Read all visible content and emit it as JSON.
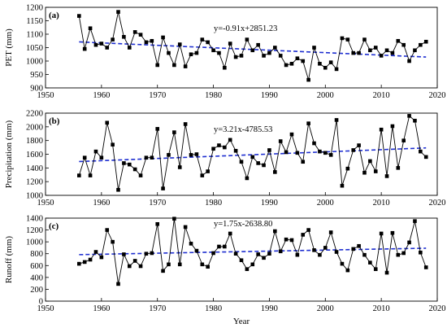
{
  "chart_data": [
    {
      "type": "line",
      "panel_label": "(a)",
      "ylabel": "PET (mm)",
      "xlabel": "",
      "equation": "y=-0.91x+2851.23",
      "trend": {
        "slope": -0.91,
        "intercept": 2851.23
      },
      "xlim": [
        1950,
        2020
      ],
      "ylim": [
        900,
        1200
      ],
      "xticks": [
        1950,
        1960,
        1970,
        1980,
        1990,
        2000,
        2010,
        2020
      ],
      "yticks": [
        900,
        950,
        1000,
        1050,
        1100,
        1150,
        1200
      ],
      "colors": {
        "series": "#000000",
        "trend": "#1f2fd0"
      },
      "x": [
        1956,
        1957,
        1958,
        1959,
        1960,
        1961,
        1962,
        1963,
        1964,
        1965,
        1966,
        1967,
        1968,
        1969,
        1970,
        1971,
        1972,
        1973,
        1974,
        1975,
        1976,
        1977,
        1978,
        1979,
        1980,
        1981,
        1982,
        1983,
        1984,
        1985,
        1986,
        1987,
        1988,
        1989,
        1990,
        1991,
        1992,
        1993,
        1994,
        1995,
        1996,
        1997,
        1998,
        1999,
        2000,
        2001,
        2002,
        2003,
        2004,
        2005,
        2006,
        2007,
        2008,
        2009,
        2010,
        2011,
        2012,
        2013,
        2014,
        2015,
        2016,
        2017,
        2018
      ],
      "values": [
        1168,
        1045,
        1122,
        1060,
        1065,
        1050,
        1080,
        1183,
        1090,
        1050,
        1108,
        1098,
        1070,
        1075,
        985,
        1088,
        1030,
        985,
        1062,
        980,
        1025,
        1030,
        1080,
        1070,
        1040,
        1030,
        975,
        1065,
        1015,
        1020,
        1080,
        1040,
        1060,
        1020,
        1030,
        1050,
        1020,
        985,
        990,
        1010,
        1000,
        930,
        1050,
        990,
        975,
        995,
        970,
        1085,
        1080,
        1030,
        1030,
        1080,
        1040,
        1050,
        1020,
        1040,
        1030,
        1075,
        1060,
        1000,
        1040,
        1060,
        1072
      ]
    },
    {
      "type": "line",
      "panel_label": "(b)",
      "ylabel": "Precipitation (mm)",
      "xlabel": "",
      "equation": "y=3.21x-4785.53",
      "trend": {
        "slope": 3.21,
        "intercept": -4785.53
      },
      "xlim": [
        1950,
        2020
      ],
      "ylim": [
        1000,
        2200
      ],
      "xticks": [
        1950,
        1960,
        1970,
        1980,
        1990,
        2000,
        2010,
        2020
      ],
      "yticks": [
        1000,
        1200,
        1400,
        1600,
        1800,
        2000,
        2200
      ],
      "colors": {
        "series": "#000000",
        "trend": "#1f2fd0"
      },
      "x": [
        1956,
        1957,
        1958,
        1959,
        1960,
        1961,
        1962,
        1963,
        1964,
        1965,
        1966,
        1967,
        1968,
        1969,
        1970,
        1971,
        1972,
        1973,
        1974,
        1975,
        1976,
        1977,
        1978,
        1979,
        1980,
        1981,
        1982,
        1983,
        1984,
        1985,
        1986,
        1987,
        1988,
        1989,
        1990,
        1991,
        1992,
        1993,
        1994,
        1995,
        1996,
        1997,
        1998,
        1999,
        2000,
        2001,
        2002,
        2003,
        2004,
        2005,
        2006,
        2007,
        2008,
        2009,
        2010,
        2011,
        2012,
        2013,
        2014,
        2015,
        2016,
        2017,
        2018
      ],
      "values": [
        1290,
        1550,
        1290,
        1640,
        1550,
        2060,
        1740,
        1080,
        1470,
        1450,
        1380,
        1290,
        1550,
        1550,
        1970,
        1100,
        1590,
        1920,
        1410,
        2040,
        1590,
        1600,
        1290,
        1350,
        1680,
        1730,
        1700,
        1810,
        1650,
        1490,
        1250,
        1560,
        1470,
        1440,
        1660,
        1340,
        1790,
        1630,
        1890,
        1620,
        1490,
        2050,
        1760,
        1640,
        1620,
        1590,
        2100,
        1140,
        1390,
        1660,
        1730,
        1330,
        1500,
        1350,
        1960,
        1280,
        2010,
        1400,
        1800,
        2160,
        2090,
        1640,
        1560
      ]
    },
    {
      "type": "line",
      "panel_label": "(c)",
      "ylabel": "Runoff (mm)",
      "xlabel": "Year",
      "equation": "y=1.75x-2638.80",
      "trend": {
        "slope": 1.75,
        "intercept": -2638.8
      },
      "xlim": [
        1950,
        2020
      ],
      "ylim": [
        0,
        1400
      ],
      "xticks": [
        1950,
        1960,
        1970,
        1980,
        1990,
        2000,
        2010,
        2020
      ],
      "yticks": [
        0,
        200,
        400,
        600,
        800,
        1000,
        1200,
        1400
      ],
      "colors": {
        "series": "#000000",
        "trend": "#1f2fd0"
      },
      "x": [
        1956,
        1957,
        1958,
        1959,
        1960,
        1961,
        1962,
        1963,
        1964,
        1965,
        1966,
        1967,
        1968,
        1969,
        1970,
        1971,
        1972,
        1973,
        1974,
        1975,
        1976,
        1977,
        1978,
        1979,
        1980,
        1981,
        1982,
        1983,
        1984,
        1985,
        1986,
        1987,
        1988,
        1989,
        1990,
        1991,
        1992,
        1993,
        1994,
        1995,
        1996,
        1997,
        1998,
        1999,
        2000,
        2001,
        2002,
        2003,
        2004,
        2005,
        2006,
        2007,
        2008,
        2009,
        2010,
        2011,
        2012,
        2013,
        2014,
        2015,
        2016,
        2017,
        2018
      ],
      "values": [
        630,
        660,
        700,
        830,
        740,
        1200,
        1000,
        290,
        790,
        590,
        680,
        590,
        800,
        810,
        1300,
        510,
        620,
        1390,
        620,
        1250,
        970,
        850,
        620,
        580,
        810,
        920,
        920,
        1140,
        800,
        690,
        540,
        620,
        790,
        730,
        800,
        1180,
        840,
        1040,
        1030,
        780,
        1120,
        1200,
        860,
        780,
        900,
        1160,
        830,
        630,
        520,
        880,
        930,
        780,
        650,
        540,
        1140,
        480,
        1150,
        780,
        810,
        990,
        1350,
        820,
        570
      ]
    }
  ]
}
